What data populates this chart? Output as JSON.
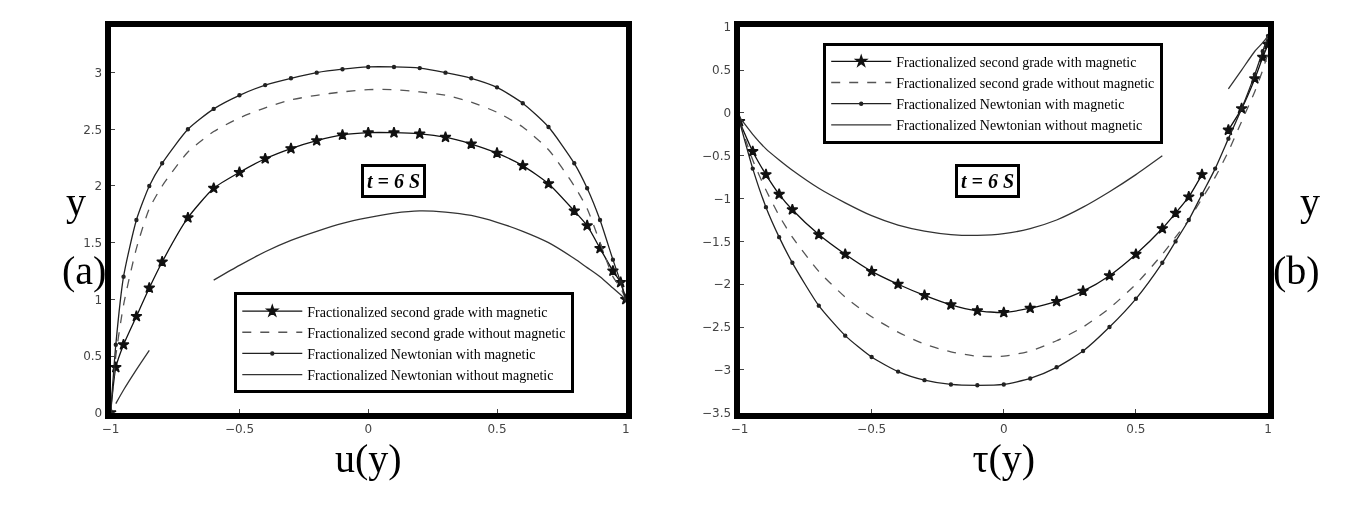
{
  "chart_data": [
    {
      "type": "line",
      "xlabel": "u(y)",
      "ylabel": "y",
      "annotations": [
        "t = 6 S",
        "(a)"
      ],
      "x": [
        -1,
        -0.98,
        -0.95,
        -0.9,
        -0.85,
        -0.8,
        -0.7,
        -0.6,
        -0.5,
        -0.4,
        -0.3,
        -0.2,
        -0.1,
        0,
        0.1,
        0.2,
        0.3,
        0.4,
        0.5,
        0.6,
        0.7,
        0.8,
        0.85,
        0.9,
        0.95,
        0.98,
        1
      ],
      "series": [
        {
          "name": "Fractionalized second grade with magnetic",
          "color": "#111111",
          "marker": "star",
          "line_style": "solid",
          "values": [
            0,
            0.4,
            0.6,
            0.85,
            1.1,
            1.33,
            1.72,
            1.98,
            2.12,
            2.24,
            2.33,
            2.4,
            2.45,
            2.47,
            2.47,
            2.46,
            2.43,
            2.37,
            2.29,
            2.18,
            2.02,
            1.78,
            1.65,
            1.45,
            1.25,
            1.15,
            1.0
          ]
        },
        {
          "name": "Fractionalized second grade without magnetic",
          "color": "#555555",
          "marker": "none",
          "line_style": "dashed",
          "values": [
            0,
            0.5,
            0.95,
            1.45,
            1.8,
            2.0,
            2.3,
            2.48,
            2.6,
            2.69,
            2.76,
            2.8,
            2.83,
            2.85,
            2.85,
            2.83,
            2.8,
            2.74,
            2.65,
            2.52,
            2.32,
            2.0,
            1.8,
            1.5,
            1.2,
            1.1,
            1.0
          ]
        },
        {
          "name": "Fractionalized Newtonian with magnetic",
          "color": "#222222",
          "marker": "circle",
          "line_style": "solid",
          "values": [
            0,
            0.6,
            1.2,
            1.7,
            2.0,
            2.2,
            2.5,
            2.68,
            2.8,
            2.89,
            2.95,
            3.0,
            3.03,
            3.05,
            3.05,
            3.04,
            3.0,
            2.95,
            2.87,
            2.73,
            2.52,
            2.2,
            1.98,
            1.7,
            1.35,
            1.15,
            1.0
          ]
        },
        {
          "name": "Fractionalized Newtonian without magnetic",
          "color": "#333333",
          "marker": "none",
          "line_style": "solid",
          "values": [
            null,
            0.08,
            0.2,
            0.38,
            0.55,
            null,
            null,
            1.17,
            1.3,
            1.42,
            1.52,
            1.6,
            1.67,
            1.72,
            1.76,
            1.78,
            1.77,
            1.74,
            1.68,
            1.6,
            1.5,
            1.36,
            1.28,
            1.2,
            1.1,
            1.04,
            1.0
          ]
        }
      ],
      "xlim": [
        -1,
        1
      ],
      "xticks": [
        -1,
        -0.5,
        0,
        0.5,
        1
      ],
      "ylim": [
        0,
        3.4
      ],
      "yticks": [
        0,
        0.5,
        1,
        1.5,
        2,
        2.5,
        3
      ],
      "legend": "bottom"
    },
    {
      "type": "line",
      "xlabel": "τ(y)",
      "y2label": "y",
      "annotations": [
        "t = 6 S",
        "(b)"
      ],
      "x": [
        -1,
        -0.95,
        -0.9,
        -0.85,
        -0.8,
        -0.7,
        -0.6,
        -0.5,
        -0.4,
        -0.3,
        -0.2,
        -0.1,
        0,
        0.1,
        0.2,
        0.3,
        0.4,
        0.5,
        0.6,
        0.65,
        0.7,
        0.75,
        0.8,
        0.85,
        0.9,
        0.95,
        0.98,
        1
      ],
      "series": [
        {
          "name": "Fractionalized second grade with magnetic",
          "color": "#111111",
          "marker": "star",
          "line_style": "solid",
          "values": [
            -0.1,
            -0.45,
            -0.72,
            -0.95,
            -1.13,
            -1.42,
            -1.65,
            -1.85,
            -2.0,
            -2.13,
            -2.24,
            -2.31,
            -2.33,
            -2.28,
            -2.2,
            -2.08,
            -1.9,
            -1.65,
            -1.35,
            -1.17,
            -0.98,
            -0.72,
            null,
            -0.2,
            0.05,
            0.4,
            0.65,
            0.8
          ]
        },
        {
          "name": "Fractionalized second grade without magnetic",
          "color": "#555555",
          "marker": "none",
          "line_style": "dashed",
          "values": [
            -0.1,
            -0.55,
            -0.9,
            -1.2,
            -1.45,
            -1.85,
            -2.15,
            -2.38,
            -2.56,
            -2.7,
            -2.79,
            -2.84,
            -2.84,
            -2.78,
            -2.66,
            -2.5,
            -2.28,
            -2.0,
            -1.65,
            -1.45,
            -1.25,
            -1.0,
            -0.75,
            -0.45,
            -0.1,
            0.25,
            0.5,
            0.7
          ]
        },
        {
          "name": "Fractionalized Newtonian with magnetic",
          "color": "#222222",
          "marker": "circle",
          "line_style": "solid",
          "values": [
            -0.1,
            -0.65,
            -1.1,
            -1.45,
            -1.75,
            -2.25,
            -2.6,
            -2.85,
            -3.02,
            -3.12,
            -3.17,
            -3.18,
            -3.17,
            -3.1,
            -2.97,
            -2.78,
            -2.5,
            -2.17,
            -1.75,
            -1.5,
            -1.25,
            -0.95,
            -0.65,
            -0.3,
            0.05,
            0.45,
            0.72,
            0.9
          ]
        },
        {
          "name": "Fractionalized Newtonian without magnetic",
          "color": "#333333",
          "marker": "none",
          "line_style": "solid",
          "values": [
            -0.05,
            -0.25,
            -0.42,
            -0.55,
            -0.67,
            -0.88,
            -1.05,
            -1.2,
            -1.31,
            -1.38,
            -1.42,
            -1.43,
            -1.41,
            -1.35,
            -1.25,
            -1.1,
            -0.92,
            -0.72,
            -0.5,
            null,
            null,
            null,
            null,
            0.28,
            0.5,
            0.72,
            0.82,
            0.9
          ]
        }
      ],
      "xlim": [
        -1,
        1
      ],
      "xticks": [
        -1,
        -0.5,
        0,
        0.5,
        1
      ],
      "ylim": [
        -3.5,
        1
      ],
      "yticks": [
        -3.5,
        -3,
        -2.5,
        -2,
        -1.5,
        -1,
        -0.5,
        0,
        0.5,
        1
      ],
      "legend": "top"
    }
  ]
}
